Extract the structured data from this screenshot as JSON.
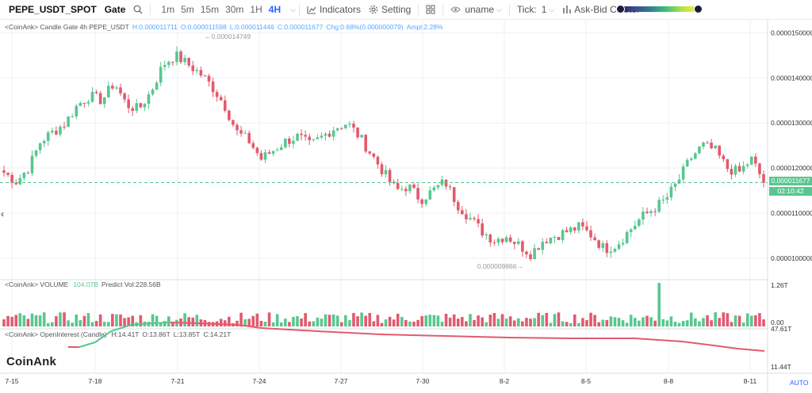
{
  "toolbar": {
    "symbol": "PEPE_USDT_SPOT",
    "exchange": "Gate",
    "timeframes": [
      "1m",
      "5m",
      "15m",
      "30m",
      "1H",
      "4H"
    ],
    "active_timeframe": "4H",
    "indicators_label": "Indicators",
    "setting_label": "Setting",
    "user_label": "uname",
    "tick_label": "Tick:",
    "tick_value": "1",
    "cluster_label": "Ask-Bid Cluster"
  },
  "icons": {
    "search": "search-icon",
    "indicators": "indicators-icon",
    "setting": "gear-icon",
    "layout": "grid-icon",
    "user": "eye-icon",
    "cluster": "cluster-icon"
  },
  "colors": {
    "up": "#58c78f",
    "down": "#e25a6e",
    "accent": "#2962ff"
  },
  "main_panel": {
    "legend_prefix": "<CoinAnk> Candle Gate 4h PEPE_USDT",
    "H": "H:0.000011711",
    "O": "O:0.000011598",
    "L": "L:0.000011446",
    "C": "C:0.000011677",
    "chg": "Chg:0.68%(0.000000079)",
    "ampl": "Ampl:2.28%",
    "high_marker": "0.000014749",
    "low_marker": "0.000009866",
    "last_price": "0.000011677",
    "countdown": "02:10:42"
  },
  "volume_panel": {
    "legend": "<CoinAnk> VOLUME",
    "vol": "104.07B",
    "predict": "Predict Vol:228.56B"
  },
  "oi_panel": {
    "legend": "<CoinAnk> OpenInterest (Candle)",
    "H": "H:14.41T",
    "O": "O:13.86T",
    "L": "L:13.85T",
    "C": "C:14.21T"
  },
  "logo": "CoinAnk",
  "auto_label": "AUTO",
  "chart_data": [
    {
      "type": "candlestick",
      "title": "PEPE_USDT_SPOT Gate 4h",
      "x_labels": [
        "7-15",
        "7-18",
        "7-21",
        "7-24",
        "7-27",
        "7-30",
        "8-2",
        "8-5",
        "8-8",
        "8-11"
      ],
      "y_ticks": [
        "0.0000150000",
        "0.0000140000",
        "0.0000130000",
        "0.0000120000",
        "0.0000110000",
        "0.0000100000"
      ],
      "ylim": [
        9.7e-06,
        1.52e-05
      ],
      "last_price": 1.1677e-05,
      "path_values": [
        11.9,
        11.7,
        12.0,
        12.6,
        12.8,
        13.0,
        13.4,
        13.6,
        13.5,
        13.9,
        13.4,
        13.3,
        13.7,
        14.3,
        14.5,
        14.3,
        14.1,
        13.8,
        13.4,
        12.8,
        12.6,
        12.2,
        12.4,
        12.6,
        12.7,
        12.5,
        12.7,
        12.9,
        13.0,
        12.7,
        12.3,
        11.9,
        11.5,
        11.6,
        11.3,
        11.5,
        11.7,
        11.2,
        10.9,
        10.6,
        10.4,
        10.5,
        10.3,
        10.1,
        10.4,
        10.5,
        10.6,
        10.7,
        10.5,
        10.2,
        10.3,
        10.6,
        10.9,
        11.1,
        11.3,
        11.7,
        12.2,
        12.5,
        12.4,
        12.0,
        11.9,
        12.2,
        11.7
      ],
      "path_scale": "1e-6"
    },
    {
      "type": "bar",
      "title": "VOLUME",
      "y_ticks": [
        "1.26T",
        "0.00"
      ],
      "notable_values": {
        "last_volume": "104.07B",
        "predicted_volume": "228.56B",
        "max_bar": "1.26T"
      }
    },
    {
      "type": "line",
      "title": "OpenInterest (Candle)",
      "y_ticks": [
        "47.61T",
        "11.44T"
      ],
      "ohlc": {
        "H": "14.41T",
        "O": "13.86T",
        "L": "13.85T",
        "C": "14.21T"
      }
    }
  ]
}
